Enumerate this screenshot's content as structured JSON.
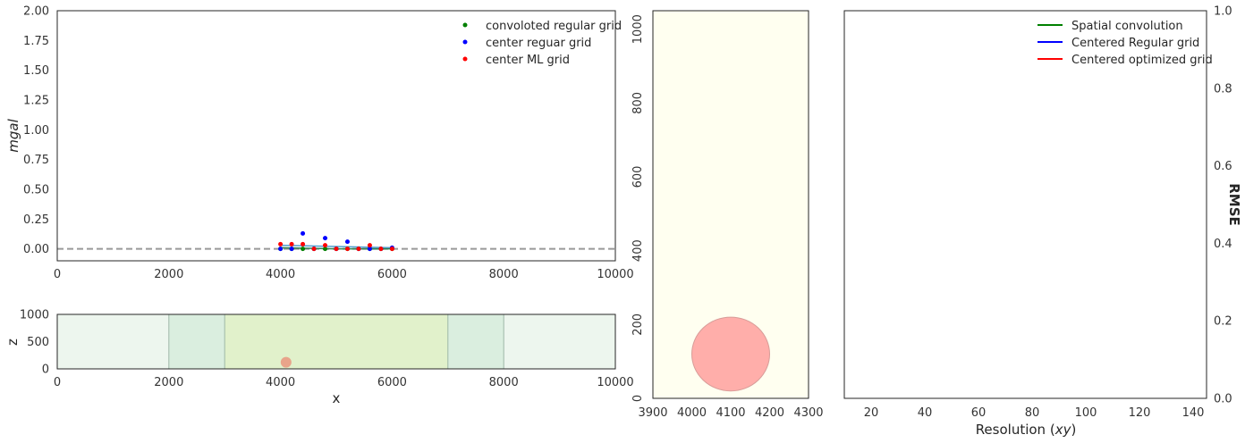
{
  "chart_data": [
    {
      "id": "gravity",
      "type": "scatter",
      "ylabel": "mgal",
      "xlim": [
        0,
        10000
      ],
      "ylim": [
        -0.1,
        2.0
      ],
      "xticks": [
        "0",
        "2000",
        "4000",
        "6000",
        "8000",
        "10000"
      ],
      "yticks": [
        "0.00",
        "0.25",
        "0.50",
        "0.75",
        "1.00",
        "1.25",
        "1.50",
        "1.75",
        "2.00"
      ],
      "grid": false,
      "legend_position": "top-right",
      "reference_line": {
        "y": 0,
        "style": "dashed",
        "color": "#999999"
      },
      "series": [
        {
          "name": "convoloted regular grid",
          "color": "#007f00",
          "points": [
            [
              4000,
              0.0
            ],
            [
              4200,
              0.0
            ],
            [
              4400,
              0.0
            ],
            [
              4600,
              0.0
            ],
            [
              4800,
              0.0
            ],
            [
              5000,
              0.0
            ],
            [
              5200,
              0.0
            ],
            [
              5400,
              0.0
            ],
            [
              5600,
              0.0
            ],
            [
              5800,
              0.0
            ],
            [
              6000,
              0.0
            ]
          ]
        },
        {
          "name": "center reguar grid",
          "color": "#0000ff",
          "points": [
            [
              4000,
              0.0
            ],
            [
              4200,
              0.0
            ],
            [
              4400,
              0.13
            ],
            [
              4600,
              0.0
            ],
            [
              4800,
              0.09
            ],
            [
              5000,
              0.0
            ],
            [
              5200,
              0.06
            ],
            [
              5400,
              0.0
            ],
            [
              5600,
              0.0
            ],
            [
              5800,
              0.0
            ],
            [
              6000,
              0.01
            ]
          ]
        },
        {
          "name": "center ML grid",
          "color": "#ff0000",
          "points": [
            [
              4000,
              0.04
            ],
            [
              4200,
              0.04
            ],
            [
              4400,
              0.04
            ],
            [
              4600,
              0.0
            ],
            [
              4800,
              0.03
            ],
            [
              5000,
              0.0
            ],
            [
              5200,
              0.0
            ],
            [
              5400,
              0.0
            ],
            [
              5600,
              0.03
            ],
            [
              5800,
              0.0
            ],
            [
              6000,
              0.0
            ]
          ]
        }
      ],
      "lines": [
        {
          "color": "#4c9fd0",
          "points": [
            [
              4000,
              0.03
            ],
            [
              5000,
              0.02
            ],
            [
              6000,
              0.01
            ]
          ]
        },
        {
          "color": "#2f7f4f",
          "points": [
            [
              4000,
              0.01
            ],
            [
              5000,
              0.0
            ],
            [
              6000,
              0.0
            ]
          ]
        }
      ]
    },
    {
      "id": "section",
      "type": "area",
      "xlabel": "x",
      "ylabel": "z",
      "xlim": [
        0,
        10000
      ],
      "ylim": [
        0,
        1000
      ],
      "xticks": [
        "0",
        "2000",
        "4000",
        "6000",
        "8000",
        "10000"
      ],
      "yticks": [
        "0",
        "500",
        "1000"
      ],
      "regions": [
        {
          "x0": 0,
          "x1": 10000,
          "color": "#edf6ee"
        },
        {
          "x0": 2000,
          "x1": 8000,
          "color": "#daeedf"
        },
        {
          "x0": 3000,
          "x1": 7000,
          "color": "#e1f1cb"
        }
      ],
      "body": {
        "x": 4100,
        "z": 120,
        "r": 100,
        "color": "#e8a48a"
      }
    },
    {
      "id": "zoom",
      "type": "area",
      "xlim": [
        3900,
        4300
      ],
      "ylim": [
        0,
        1050
      ],
      "xticks": [
        "3900",
        "4000",
        "4100",
        "4200",
        "4300"
      ],
      "yticks": [
        "0",
        "200",
        "400",
        "600",
        "800",
        "1000"
      ],
      "background": "#fffff0",
      "body": {
        "x": 4100,
        "z": 120,
        "r": 100,
        "color": "#ffaeaa"
      }
    },
    {
      "id": "rmse",
      "type": "line",
      "xlabel": "Resolution (xy)",
      "ylabel": "RMSE",
      "xlim": [
        10,
        145
      ],
      "ylim": [
        0,
        1.0
      ],
      "xticks": [
        "20",
        "40",
        "60",
        "80",
        "100",
        "120",
        "140"
      ],
      "yticks": [
        "0.0",
        "0.2",
        "0.4",
        "0.6",
        "0.8",
        "1.0"
      ],
      "legend_position": "top-right",
      "series": [
        {
          "name": "Spatial convolution",
          "color": "#008000",
          "values": []
        },
        {
          "name": "Centered Regular grid",
          "color": "#0000ff",
          "values": []
        },
        {
          "name": "Centered optimized grid",
          "color": "#ff0000",
          "values": []
        }
      ]
    }
  ]
}
